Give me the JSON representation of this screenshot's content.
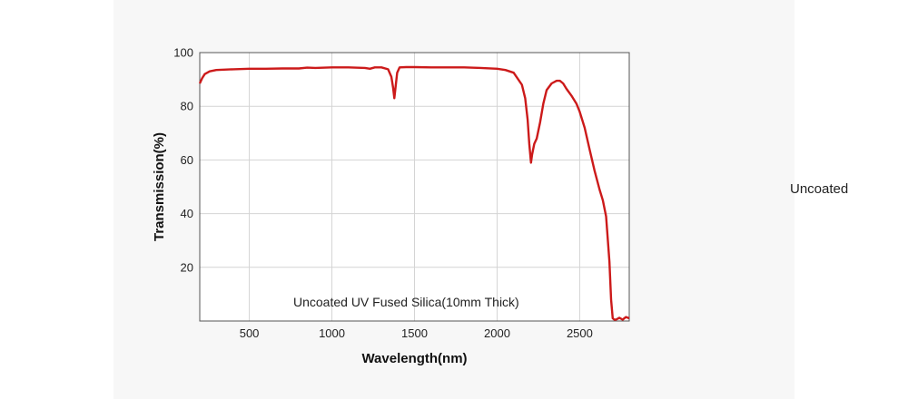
{
  "side_label": "Uncoated",
  "colors": {
    "line": "#cc1a1a",
    "grid": "#d4d4d4",
    "plot_bg": "#ffffff",
    "panel_bg": "#f7f7f7"
  },
  "chart_data": {
    "type": "line",
    "title": "",
    "annotation": "Uncoated UV Fused Silica(10mm Thick)",
    "xlabel": "Wavelength(nm)",
    "ylabel": "Transmission(%)",
    "xlim": [
      200,
      2800
    ],
    "ylim": [
      0,
      100
    ],
    "xticks": [
      500,
      1000,
      1500,
      2000,
      2500
    ],
    "yticks": [
      20,
      40,
      60,
      80,
      100
    ],
    "grid": true,
    "series": [
      {
        "x": [
          200,
          215,
          230,
          260,
          300,
          400,
          500,
          600,
          700,
          800,
          850,
          900,
          1000,
          1100,
          1200,
          1230,
          1260,
          1300,
          1340,
          1360,
          1370,
          1378,
          1385,
          1395,
          1410,
          1450,
          1500,
          1600,
          1700,
          1800,
          1900,
          2000,
          2050,
          2100,
          2150,
          2170,
          2185,
          2195,
          2205,
          2212,
          2225,
          2240,
          2260,
          2280,
          2300,
          2330,
          2360,
          2380,
          2400,
          2420,
          2450,
          2480,
          2500,
          2530,
          2560,
          2590,
          2620,
          2640,
          2660,
          2680,
          2690,
          2700,
          2710,
          2720,
          2740,
          2760,
          2780,
          2800
        ],
        "values": [
          88.5,
          90.5,
          92.0,
          93.0,
          93.5,
          93.8,
          94.0,
          94.0,
          94.1,
          94.1,
          94.4,
          94.3,
          94.5,
          94.5,
          94.3,
          94.0,
          94.5,
          94.5,
          93.8,
          91.0,
          87.0,
          83.0,
          87.0,
          92.5,
          94.5,
          94.6,
          94.6,
          94.5,
          94.5,
          94.5,
          94.3,
          94.0,
          93.5,
          92.5,
          88.0,
          83.0,
          75.0,
          66.0,
          59.0,
          62.0,
          66.0,
          68.0,
          74.0,
          81.0,
          86.0,
          88.5,
          89.5,
          89.5,
          88.5,
          86.5,
          84.0,
          81.0,
          78.0,
          72.0,
          64.0,
          56.0,
          49.0,
          45.0,
          39.0,
          22.0,
          8.0,
          1.0,
          0.5,
          0.5,
          1.2,
          0.5,
          1.5,
          1.0
        ]
      }
    ]
  }
}
